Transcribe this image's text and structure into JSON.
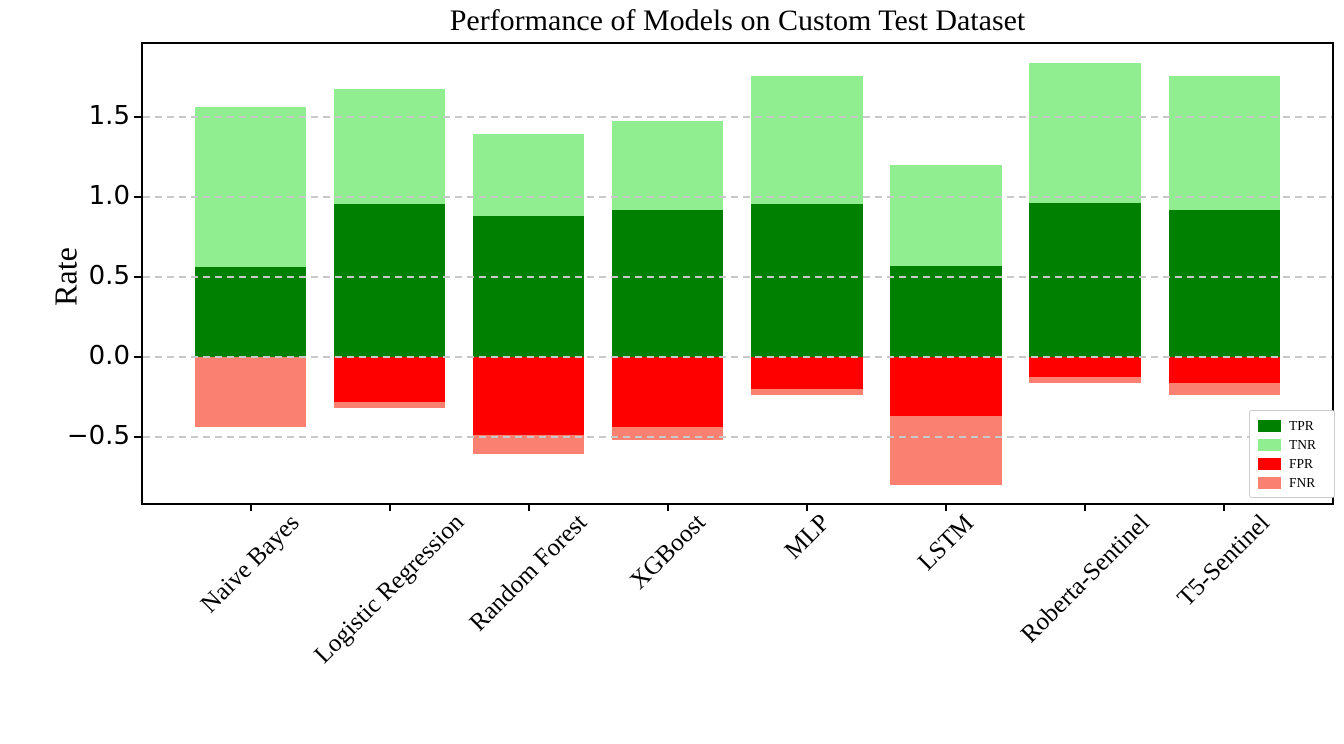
{
  "chart_data": {
    "type": "bar",
    "variant": "stacked-diverging",
    "title": "Performance of Models on Custom Test Dataset",
    "ylabel": "Rate",
    "xlabel": "",
    "categories": [
      "Naive Bayes",
      "Logistic Regression",
      "Random Forest",
      "XGBoost",
      "MLP",
      "LSTM",
      "Roberta-Sentinel",
      "T5-Sentinel"
    ],
    "series": [
      {
        "name": "TPR",
        "color": "#008000",
        "direction": "up",
        "values": [
          0.565,
          0.96,
          0.885,
          0.92,
          0.96,
          0.57,
          0.965,
          0.92
        ]
      },
      {
        "name": "TNR",
        "color": "#90EE90",
        "direction": "up",
        "values": [
          1.0,
          0.72,
          0.51,
          0.56,
          0.8,
          0.63,
          0.875,
          0.84
        ]
      },
      {
        "name": "FPR",
        "color": "#FF0000",
        "direction": "down",
        "values": [
          0.0,
          0.28,
          0.49,
          0.44,
          0.2,
          0.37,
          0.125,
          0.16
        ]
      },
      {
        "name": "FNR",
        "color": "#FA8072",
        "direction": "down",
        "values": [
          0.435,
          0.04,
          0.115,
          0.08,
          0.04,
          0.43,
          0.035,
          0.08
        ]
      }
    ],
    "yticks": {
      "values": [
        1.5,
        1.0,
        0.5,
        0.0,
        -0.5
      ],
      "labels": [
        "1.5",
        "1.0",
        "0.5",
        "0.0",
        "−0.5"
      ]
    },
    "ylim": [
      -0.93,
      1.97
    ],
    "grid": "dashed-horizontal",
    "grid_color": "#c8c8c8",
    "bar_width_fraction": 0.8,
    "legend": {
      "position": "lower-right",
      "entries": [
        "TPR",
        "TNR",
        "FPR",
        "FNR"
      ]
    }
  }
}
